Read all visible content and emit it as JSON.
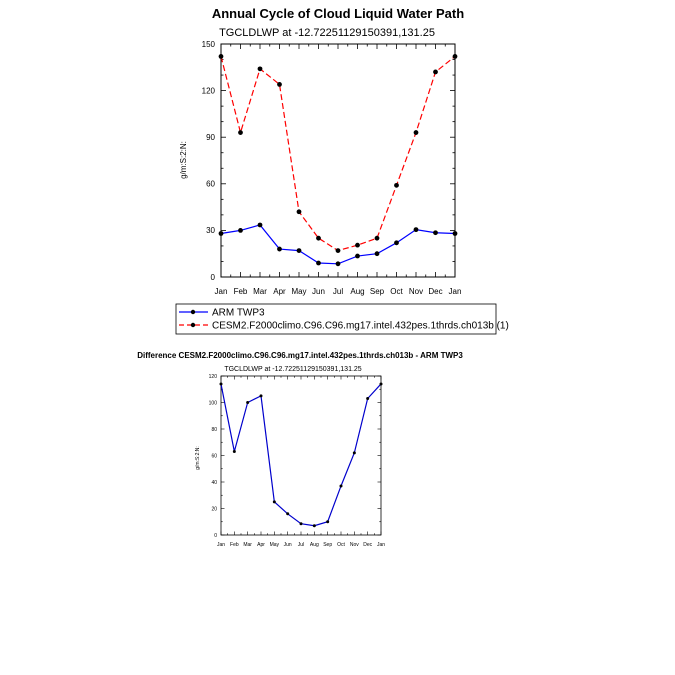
{
  "chart_data": [
    {
      "type": "line",
      "title": "Annual Cycle of Cloud Liquid Water Path",
      "subtitle": "TGCLDLWP at -12.72251129150391,131.25",
      "xlabel": "",
      "ylabel": "g/m:S:2:N:",
      "ylim": [
        0,
        150
      ],
      "yticks": [
        0,
        30,
        60,
        90,
        120,
        150
      ],
      "categories": [
        "Jan",
        "Feb",
        "Mar",
        "Apr",
        "May",
        "Jun",
        "Jul",
        "Aug",
        "Sep",
        "Oct",
        "Nov",
        "Dec",
        "Jan"
      ],
      "series": [
        {
          "name": "ARM TWP3",
          "color": "#0000ff",
          "dash": "solid",
          "values": [
            28,
            30,
            33.5,
            18,
            17,
            9,
            8.5,
            13.5,
            15,
            22,
            30.5,
            28.5,
            28
          ]
        },
        {
          "name": "CESM2.F2000climo.C96.C96.mg17.intel.432pes.1thrds.ch013b (1)",
          "color": "#ff0000",
          "dash": "dashed",
          "values": [
            142,
            93,
            134,
            124,
            42,
            25,
            17,
            20.5,
            25,
            59,
            93,
            132,
            142
          ]
        }
      ],
      "legend": "below"
    },
    {
      "type": "line",
      "title": "Difference CESM2.F2000climo.C96.C96.mg17.intel.432pes.1thrds.ch013b - ARM TWP3",
      "subtitle": "TGCLDLWP at -12.72251129150391,131.25",
      "xlabel": "",
      "ylabel": "g/m:S:2:N:",
      "ylim": [
        0,
        120
      ],
      "yticks": [
        0,
        20,
        40,
        60,
        80,
        100,
        120
      ],
      "categories": [
        "Jan",
        "Feb",
        "Mar",
        "Apr",
        "May",
        "Jun",
        "Jul",
        "Aug",
        "Sep",
        "Oct",
        "Nov",
        "Dec",
        "Jan"
      ],
      "series": [
        {
          "name": "Difference",
          "color": "#0000cc",
          "dash": "solid",
          "values": [
            114,
            63,
            100,
            105,
            25,
            16,
            8.5,
            7,
            10,
            37,
            62,
            103,
            114
          ]
        }
      ]
    }
  ]
}
